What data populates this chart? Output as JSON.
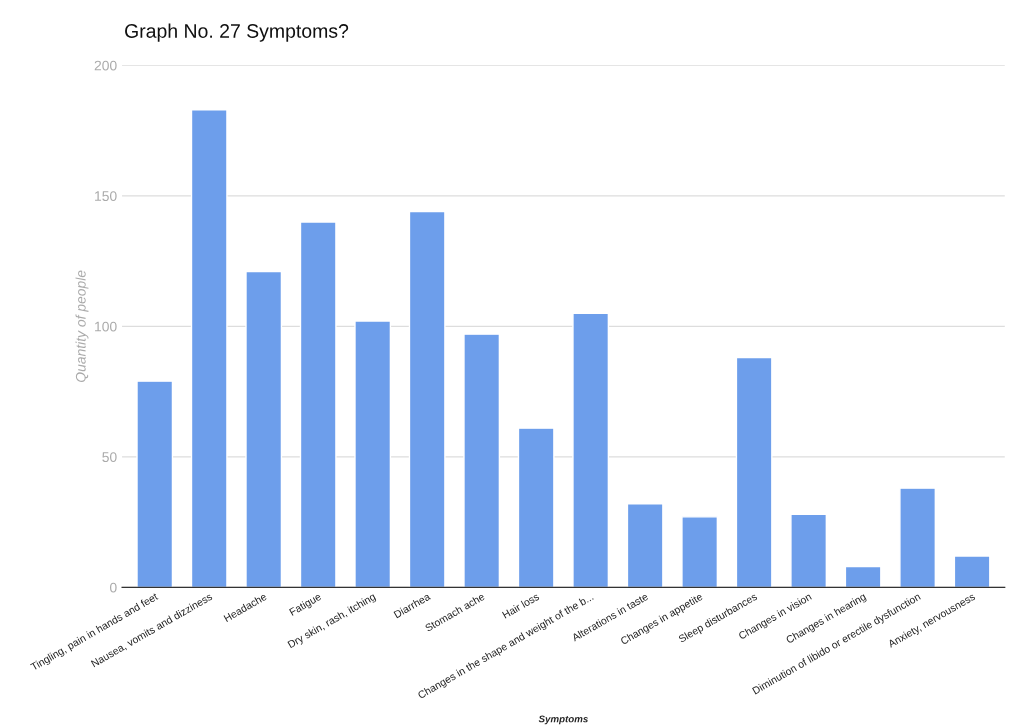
{
  "chart_data": {
    "type": "bar",
    "title": "Graph No. 27 Symptoms?",
    "xlabel": "Symptoms",
    "ylabel": "Quantity of people",
    "categories": [
      "Tingling, pain in hands and feet",
      "Nausea, vomits and dizziness",
      "Headache",
      "Fatigue",
      "Dry skin, rash, itching",
      "Diarrhea",
      "Stomach ache",
      "Hair loss",
      "Changes in the shape and weight of the b...",
      "Alterations in taste",
      "Changes in appetite",
      "Sleep disturbances",
      "Changes in vision",
      "Changes in hearing",
      "Diminution of libido or erectile dysfunction",
      "Anxiety, nervousness"
    ],
    "values": [
      79,
      183,
      121,
      140,
      102,
      144,
      97,
      61,
      105,
      32,
      27,
      88,
      28,
      8,
      38,
      12
    ],
    "color": "#6d9eeb",
    "ylim": [
      0,
      200
    ],
    "yticks": [
      0,
      50,
      100,
      150,
      200
    ],
    "grid": "y",
    "legend": false
  }
}
